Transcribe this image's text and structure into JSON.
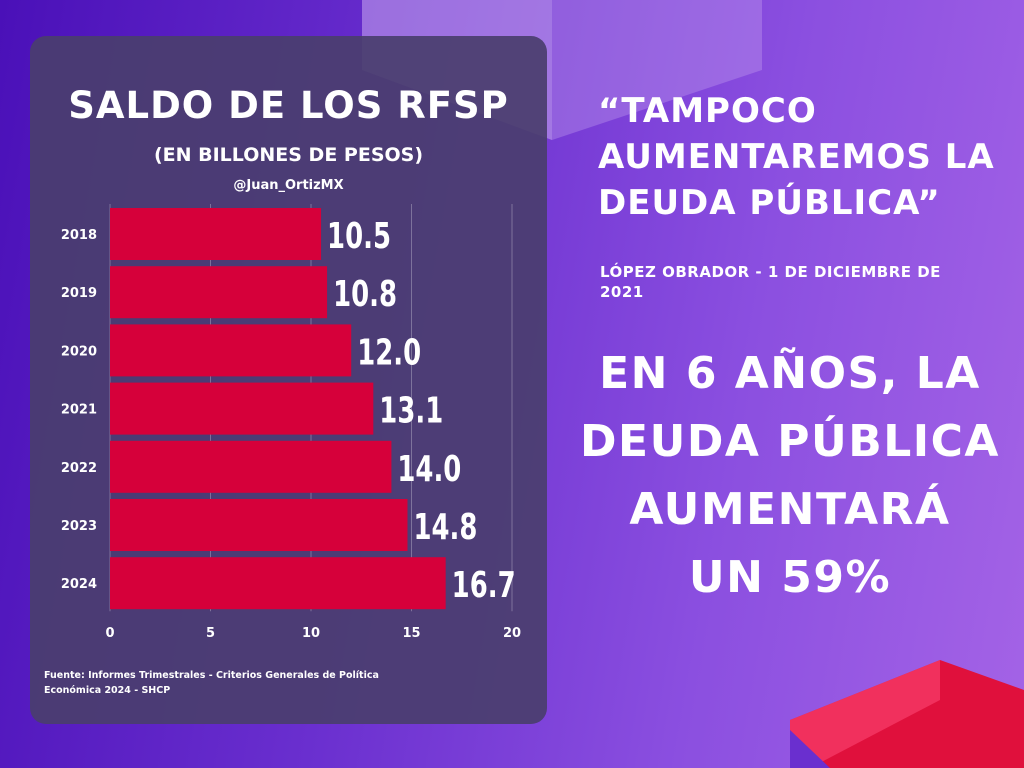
{
  "chart_data": {
    "type": "bar",
    "orientation": "horizontal",
    "title": "SALDO DE LOS RFSP",
    "subtitle": "(EN BILLONES DE PESOS)",
    "author": "@Juan_OrtizMX",
    "categories": [
      "2018",
      "2019",
      "2020",
      "2021",
      "2022",
      "2023",
      "2024"
    ],
    "values": [
      10.5,
      10.8,
      12.0,
      13.1,
      14.0,
      14.8,
      16.7
    ],
    "value_labels": [
      "10.5",
      "10.8",
      "12.0",
      "13.1",
      "14.0",
      "14.8",
      "16.7"
    ],
    "x_ticks": [
      "0",
      "5",
      "10",
      "15",
      "20"
    ],
    "xlim": [
      0,
      20
    ],
    "xlabel": "",
    "ylabel": "",
    "grid": "vertical",
    "bar_color": "#d6003a"
  },
  "source": {
    "line1": "Fuente: Informes Trimestrales - Criterios Generales de Política",
    "line2": "Económica 2024 - SHCP"
  },
  "quote": {
    "line1": "“TAMPOCO",
    "line2": "AUMENTAREMOS LA",
    "line3": "DEUDA PÚBLICA”"
  },
  "attribution": {
    "line1": "LÓPEZ OBRADOR - 1 DE DICIEMBRE DE",
    "line2": "2021"
  },
  "headline": {
    "line1": "EN 6 AÑOS, LA",
    "line2": "DEUDA PÚBLICA",
    "line3": "AUMENTARÁ",
    "line4": "UN 59%"
  },
  "colors": {
    "background_start": "#4a10b8",
    "background_end": "#a463e6",
    "card": "#4a3e6e",
    "bar": "#d6003a",
    "accent_red": "#e0103c",
    "text": "#ffffff"
  }
}
